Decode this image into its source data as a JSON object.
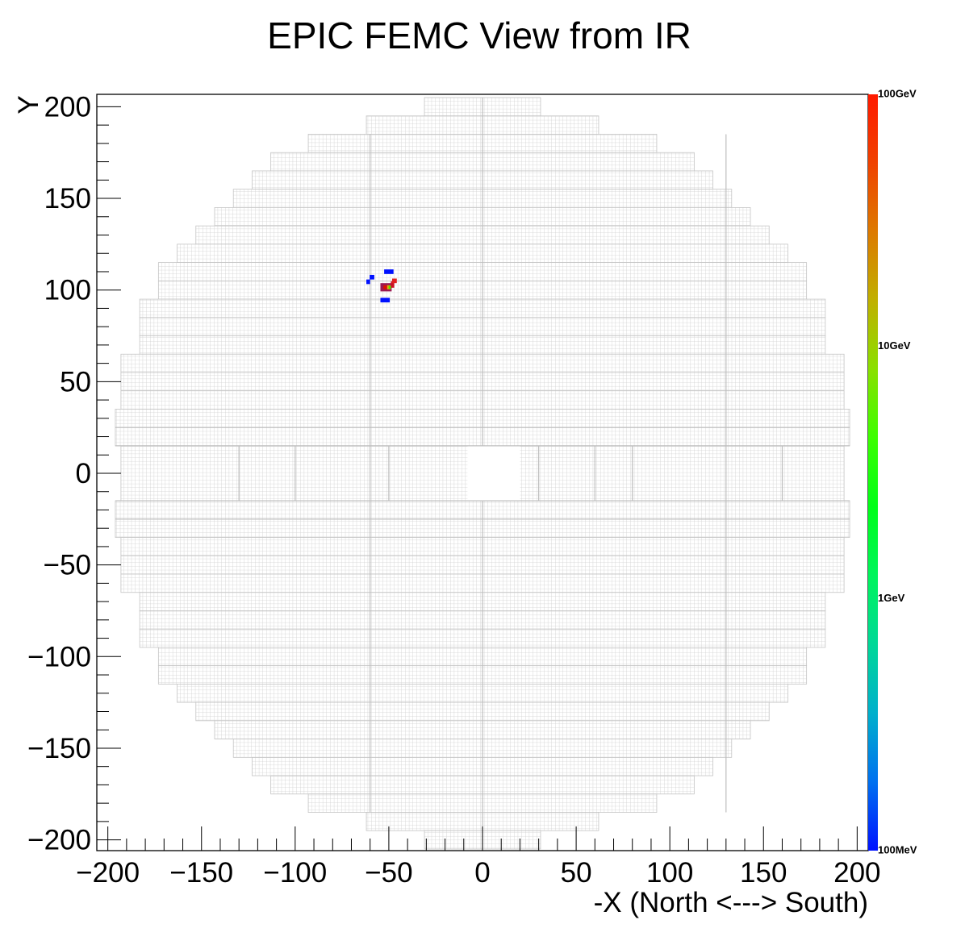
{
  "chart_data": {
    "type": "heatmap",
    "title": "EPIC FEMC View from IR",
    "xlabel": "-X (North <---> South)",
    "ylabel": "Y",
    "xlim": [
      -205,
      205
    ],
    "ylim": [
      -205,
      205
    ],
    "x_ticks": [
      -200,
      -150,
      -100,
      -50,
      0,
      50,
      100,
      150,
      200
    ],
    "y_ticks": [
      -200,
      -150,
      -100,
      -50,
      0,
      50,
      100,
      150,
      200
    ],
    "x_tick_labels": [
      "−200",
      "−150",
      "−100",
      "−50",
      "0",
      "50",
      "100",
      "150",
      "200"
    ],
    "y_tick_labels": [
      "−200",
      "−150",
      "−100",
      "−50",
      "0",
      "50",
      "100",
      "150",
      "200"
    ],
    "grid": false,
    "detector_cell_color": "#d4d4d4",
    "detector_rows": [
      {
        "y": [
          195,
          205
        ],
        "x": [
          -31,
          31
        ]
      },
      {
        "y": [
          185,
          195
        ],
        "x": [
          -62,
          62
        ]
      },
      {
        "y": [
          175,
          185
        ],
        "x": [
          -93,
          93
        ]
      },
      {
        "y": [
          165,
          175
        ],
        "x": [
          -113,
          113
        ]
      },
      {
        "y": [
          155,
          165
        ],
        "x": [
          -123,
          123
        ]
      },
      {
        "y": [
          145,
          155
        ],
        "x": [
          -133,
          133
        ]
      },
      {
        "y": [
          135,
          145
        ],
        "x": [
          -143,
          143
        ]
      },
      {
        "y": [
          125,
          135
        ],
        "x": [
          -153,
          153
        ]
      },
      {
        "y": [
          115,
          125
        ],
        "x": [
          -163,
          163
        ]
      },
      {
        "y": [
          105,
          115
        ],
        "x": [
          -173,
          173
        ]
      },
      {
        "y": [
          95,
          105
        ],
        "x": [
          -173,
          173
        ]
      },
      {
        "y": [
          85,
          95
        ],
        "x": [
          -183,
          183
        ]
      },
      {
        "y": [
          75,
          85
        ],
        "x": [
          -183,
          183
        ]
      },
      {
        "y": [
          65,
          75
        ],
        "x": [
          -183,
          183
        ]
      },
      {
        "y": [
          55,
          65
        ],
        "x": [
          -193,
          193
        ]
      },
      {
        "y": [
          45,
          55
        ],
        "x": [
          -193,
          193
        ]
      },
      {
        "y": [
          35,
          45
        ],
        "x": [
          -193,
          193
        ]
      },
      {
        "y": [
          25,
          35
        ],
        "x": [
          -196,
          196
        ]
      },
      {
        "y": [
          15,
          25
        ],
        "x": [
          -196,
          196
        ]
      },
      {
        "y": [
          -15,
          15
        ],
        "x": [
          -193,
          193
        ]
      },
      {
        "y": [
          -25,
          -15
        ],
        "x": [
          -196,
          196
        ]
      },
      {
        "y": [
          -35,
          -25
        ],
        "x": [
          -196,
          196
        ]
      },
      {
        "y": [
          -45,
          -35
        ],
        "x": [
          -193,
          193
        ]
      },
      {
        "y": [
          -55,
          -45
        ],
        "x": [
          -193,
          193
        ]
      },
      {
        "y": [
          -65,
          -55
        ],
        "x": [
          -193,
          193
        ]
      },
      {
        "y": [
          -75,
          -65
        ],
        "x": [
          -183,
          183
        ]
      },
      {
        "y": [
          -85,
          -75
        ],
        "x": [
          -183,
          183
        ]
      },
      {
        "y": [
          -95,
          -85
        ],
        "x": [
          -183,
          183
        ]
      },
      {
        "y": [
          -105,
          -95
        ],
        "x": [
          -173,
          173
        ]
      },
      {
        "y": [
          -115,
          -105
        ],
        "x": [
          -173,
          173
        ]
      },
      {
        "y": [
          -125,
          -115
        ],
        "x": [
          -163,
          163
        ]
      },
      {
        "y": [
          -135,
          -125
        ],
        "x": [
          -153,
          153
        ]
      },
      {
        "y": [
          -145,
          -135
        ],
        "x": [
          -143,
          143
        ]
      },
      {
        "y": [
          -155,
          -145
        ],
        "x": [
          -133,
          133
        ]
      },
      {
        "y": [
          -165,
          -155
        ],
        "x": [
          -123,
          123
        ]
      },
      {
        "y": [
          -175,
          -165
        ],
        "x": [
          -113,
          113
        ]
      },
      {
        "y": [
          -185,
          -175
        ],
        "x": [
          -93,
          93
        ]
      },
      {
        "y": [
          -195,
          -185
        ],
        "x": [
          -62,
          62
        ]
      },
      {
        "y": [
          -205,
          -195
        ],
        "x": [
          -31,
          31
        ]
      }
    ],
    "beam_hole": {
      "x": [
        -8,
        20
      ],
      "y": [
        -15,
        15
      ]
    },
    "hits": [
      {
        "x": -50,
        "y": 110,
        "w": 5,
        "h": 2.5,
        "color": "#0011ff"
      },
      {
        "x": -59,
        "y": 107,
        "w": 2.5,
        "h": 2.5,
        "color": "#0011ff"
      },
      {
        "x": -61,
        "y": 104.5,
        "w": 2,
        "h": 2.5,
        "color": "#0011ff"
      },
      {
        "x": -51.5,
        "y": 101.5,
        "w": 6,
        "h": 4.5,
        "color": "#9b1a52"
      },
      {
        "x": -52,
        "y": 101.5,
        "w": 1.8,
        "h": 2.2,
        "color": "#dd1100"
      },
      {
        "x": -50,
        "y": 101.5,
        "w": 1.8,
        "h": 2.2,
        "color": "#eaaa00"
      },
      {
        "x": -48,
        "y": 103,
        "w": 1.8,
        "h": 3.5,
        "color": "#cc1122"
      },
      {
        "x": -47,
        "y": 105,
        "w": 2.5,
        "h": 2.5,
        "color": "#e02020"
      },
      {
        "x": -49.5,
        "y": 101.5,
        "w": 1.2,
        "h": 1.6,
        "color": "#44ee00"
      },
      {
        "x": -52,
        "y": 94.5,
        "w": 5,
        "h": 2.5,
        "color": "#0011ff"
      }
    ],
    "colorbar": {
      "scale": "log",
      "range_GeV": [
        0.1,
        100
      ],
      "labels": [
        {
          "text": "100GeV",
          "value": 100
        },
        {
          "text": "10GeV",
          "value": 10
        },
        {
          "text": "1GeV",
          "value": 1
        },
        {
          "text": "100MeV",
          "value": 0.1
        }
      ],
      "colors": [
        "#0012ff",
        "#0071f0",
        "#00b0cc",
        "#00d898",
        "#00f55c",
        "#00ff18",
        "#3cff00",
        "#8ae000",
        "#c0b000",
        "#dd7a00",
        "#f04200",
        "#ff1a00"
      ]
    }
  }
}
